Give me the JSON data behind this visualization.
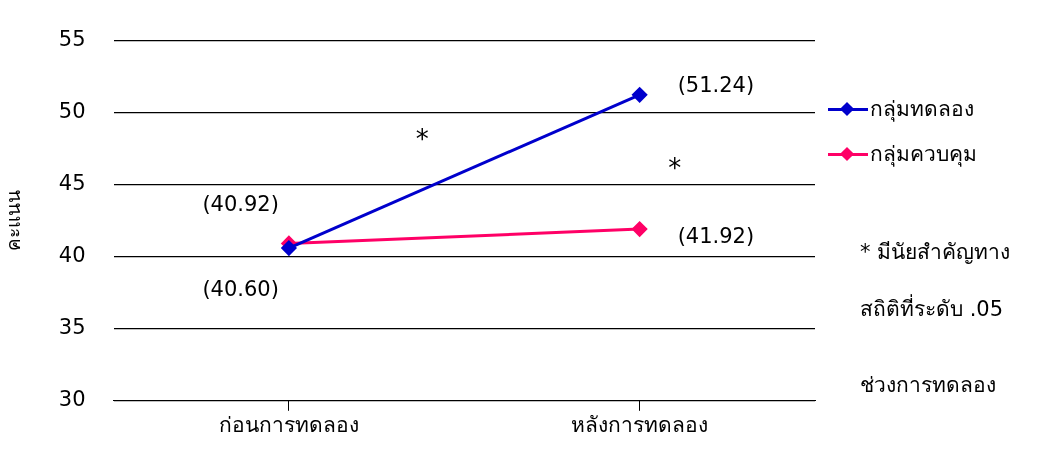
{
  "chart_data": {
    "type": "line",
    "ylabel": "คะแนน",
    "xlabel": "ช่วงการทดลอง",
    "categories": [
      "ก่อนการทดลอง",
      "หลังการทดลอง"
    ],
    "series": [
      {
        "name": "กลุ่มทดลอง",
        "color": "#0000cc",
        "values": [
          40.6,
          51.24
        ],
        "value_labels": [
          "(40.60)",
          "(51.24)"
        ]
      },
      {
        "name": "กลุ่มควบคุม",
        "color": "#ff0066",
        "values": [
          40.92,
          41.92
        ],
        "value_labels": [
          "(40.92)",
          "(41.92)"
        ]
      }
    ],
    "ylim": [
      30,
      55
    ],
    "yticks": [
      30,
      35,
      40,
      45,
      50,
      55
    ],
    "grid": "y",
    "legend": "right",
    "marker": "diamond",
    "line_style": "solid",
    "annotations": [
      "*",
      "*",
      "* มีนัยสำคัญทาง",
      "สถิติที่ระดับ .05"
    ]
  }
}
